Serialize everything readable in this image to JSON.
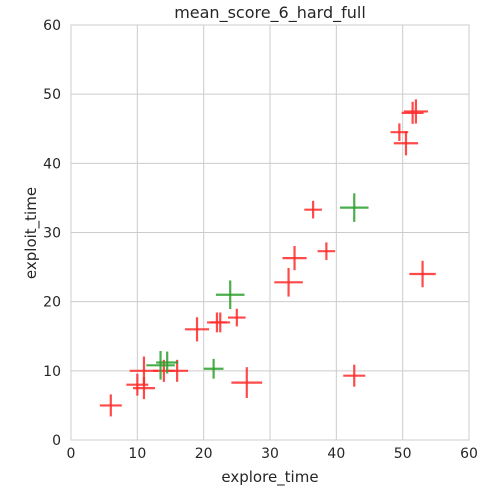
{
  "chart_data": {
    "type": "scatter",
    "title": "mean_score_6_hard_full",
    "xlabel": "explore_time",
    "ylabel": "exploit_time",
    "xlim": [
      0,
      60
    ],
    "ylim": [
      0,
      60
    ],
    "xticks": [
      0,
      10,
      20,
      30,
      40,
      50,
      60
    ],
    "yticks": [
      0,
      10,
      20,
      30,
      40,
      50,
      60
    ],
    "grid": true,
    "marker": "plus",
    "colors": {
      "red": "#ff2a2a",
      "green": "#2ca02c",
      "grid": "#cccccc",
      "frame": "#cccccc"
    },
    "series": [
      {
        "color_key": "red",
        "points": [
          {
            "x": 6.0,
            "y": 5.0,
            "s": 1.0
          },
          {
            "x": 10.0,
            "y": 8.0,
            "s": 1.0
          },
          {
            "x": 11.0,
            "y": 7.5,
            "s": 1.0
          },
          {
            "x": 11.0,
            "y": 10.0,
            "s": 1.3
          },
          {
            "x": 14.0,
            "y": 10.0,
            "s": 1.0
          },
          {
            "x": 16.0,
            "y": 10.0,
            "s": 1.0
          },
          {
            "x": 19.0,
            "y": 16.0,
            "s": 1.1
          },
          {
            "x": 22.0,
            "y": 17.0,
            "s": 0.9
          },
          {
            "x": 22.5,
            "y": 17.0,
            "s": 0.9
          },
          {
            "x": 25.0,
            "y": 17.7,
            "s": 0.8
          },
          {
            "x": 26.5,
            "y": 8.3,
            "s": 1.4
          },
          {
            "x": 32.8,
            "y": 22.8,
            "s": 1.3
          },
          {
            "x": 33.7,
            "y": 26.3,
            "s": 1.1
          },
          {
            "x": 36.5,
            "y": 33.3,
            "s": 0.8
          },
          {
            "x": 38.5,
            "y": 27.3,
            "s": 0.8
          },
          {
            "x": 42.7,
            "y": 9.3,
            "s": 1.0
          },
          {
            "x": 49.5,
            "y": 44.5,
            "s": 0.8
          },
          {
            "x": 50.5,
            "y": 42.9,
            "s": 1.1
          },
          {
            "x": 51.5,
            "y": 47.3,
            "s": 1.0
          },
          {
            "x": 52.0,
            "y": 47.5,
            "s": 1.1
          },
          {
            "x": 53.0,
            "y": 24.0,
            "s": 1.2
          }
        ]
      },
      {
        "color_key": "green",
        "points": [
          {
            "x": 13.5,
            "y": 10.8,
            "s": 1.3
          },
          {
            "x": 14.5,
            "y": 11.2,
            "s": 1.0
          },
          {
            "x": 21.5,
            "y": 10.3,
            "s": 0.9
          },
          {
            "x": 24.0,
            "y": 21.0,
            "s": 1.3
          },
          {
            "x": 42.7,
            "y": 33.6,
            "s": 1.3
          }
        ]
      }
    ]
  }
}
